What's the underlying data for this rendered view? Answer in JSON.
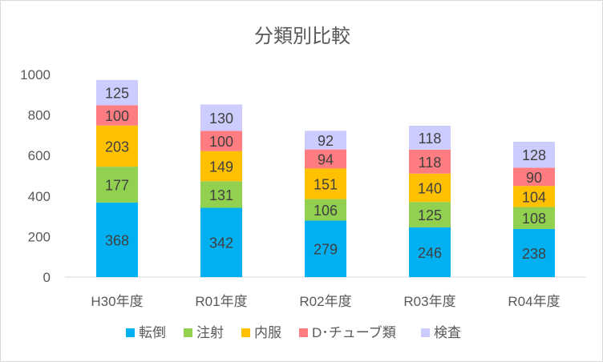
{
  "chart_data": {
    "type": "bar",
    "stacked": true,
    "title": "分類別比較",
    "xlabel": "",
    "ylabel": "",
    "ylim": [
      0,
      1000
    ],
    "yticks": [
      0,
      200,
      400,
      600,
      800,
      1000
    ],
    "grid": false,
    "legend_position": "bottom",
    "categories": [
      "H30年度",
      "R01年度",
      "R02年度",
      "R03年度",
      "R04年度"
    ],
    "series": [
      {
        "name": "転倒",
        "color": "#00b0f0",
        "values": [
          368,
          342,
          279,
          246,
          238
        ]
      },
      {
        "name": "注射",
        "color": "#92d050",
        "values": [
          177,
          131,
          106,
          125,
          108
        ]
      },
      {
        "name": "内服",
        "color": "#ffc000",
        "values": [
          203,
          149,
          151,
          140,
          104
        ]
      },
      {
        "name": "D･チューブ類",
        "color": "#ff7c80",
        "values": [
          100,
          100,
          94,
          118,
          90
        ]
      },
      {
        "name": "検査",
        "color": "#ccccff",
        "values": [
          125,
          130,
          92,
          118,
          128
        ]
      }
    ]
  }
}
